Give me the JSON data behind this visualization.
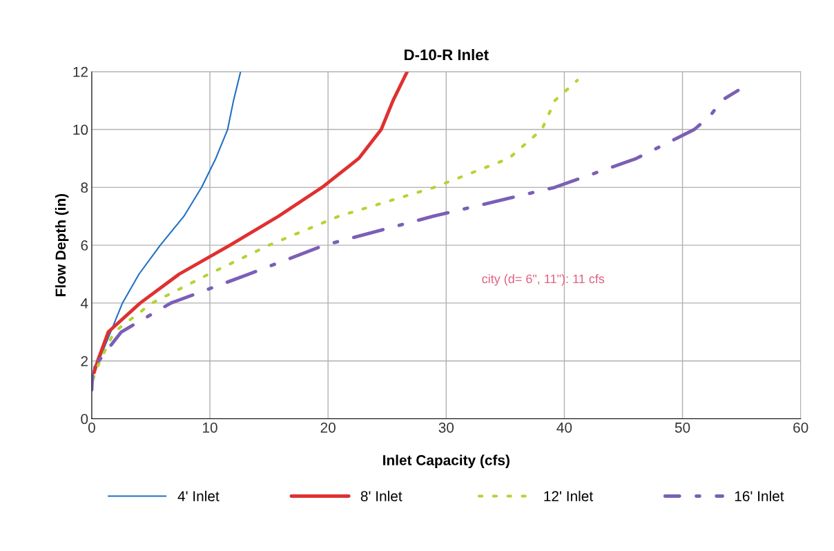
{
  "chart_data": {
    "type": "line",
    "title": "D-10-R Inlet",
    "xlabel": "Inlet Capacity (cfs)",
    "ylabel": "Flow Depth (in)",
    "xlim": [
      0,
      60
    ],
    "xticks": [
      0,
      10,
      20,
      30,
      40,
      50,
      60
    ],
    "ylim": [
      0,
      12
    ],
    "yticks": [
      0,
      2,
      4,
      6,
      8,
      10,
      12
    ],
    "grid": true,
    "legend": "bottom",
    "marker": "none",
    "annotations": [
      "city (d= 6\", 11\"): 11 cfs"
    ],
    "series": [
      {
        "name": "4' Inlet",
        "color": "#1f6fc4",
        "line_style": "solid",
        "x": [
          0.0,
          0.2,
          0.6,
          1.6,
          2.6,
          4.0,
          5.8,
          7.8,
          9.3,
          10.5,
          11.5,
          12.0,
          12.6
        ],
        "values": [
          1.2,
          1.8,
          2.0,
          3.0,
          4.0,
          5.0,
          6.0,
          7.0,
          8.0,
          9.0,
          10.0,
          11.0,
          12.0
        ]
      },
      {
        "name": "8' Inlet",
        "color": "#e03030",
        "line_style": "solid",
        "x": [
          0.2,
          0.5,
          1.4,
          4.1,
          7.4,
          11.7,
          15.8,
          19.5,
          22.6,
          24.5,
          25.5,
          26.7
        ],
        "values": [
          1.6,
          2.0,
          3.0,
          4.0,
          5.0,
          6.0,
          7.0,
          8.0,
          9.0,
          10.0,
          11.0,
          12.0
        ]
      },
      {
        "name": "12' Inlet",
        "color": "#b5d334",
        "line_style": "dotted",
        "x": [
          0.0,
          0.3,
          0.7,
          1.9,
          5.1,
          9.9,
          15.0,
          20.9,
          29.0,
          35.3,
          38.1,
          39.2,
          41.1
        ],
        "values": [
          1.2,
          1.6,
          2.0,
          3.0,
          4.0,
          5.0,
          6.0,
          7.0,
          8.0,
          9.0,
          10.0,
          11.0,
          11.7
        ]
      },
      {
        "name": "16' Inlet",
        "color": "#7b5fb5",
        "line_style": "dashed",
        "x": [
          0.0,
          0.1,
          0.6,
          2.5,
          6.7,
          13.3,
          19.7,
          28.9,
          39.2,
          46.1,
          51.0,
          52.4,
          53.3,
          54.7
        ],
        "values": [
          1.0,
          1.8,
          2.0,
          3.0,
          4.0,
          5.0,
          6.0,
          7.0,
          8.0,
          9.0,
          10.0,
          10.5,
          11.0,
          11.35
        ]
      }
    ]
  }
}
